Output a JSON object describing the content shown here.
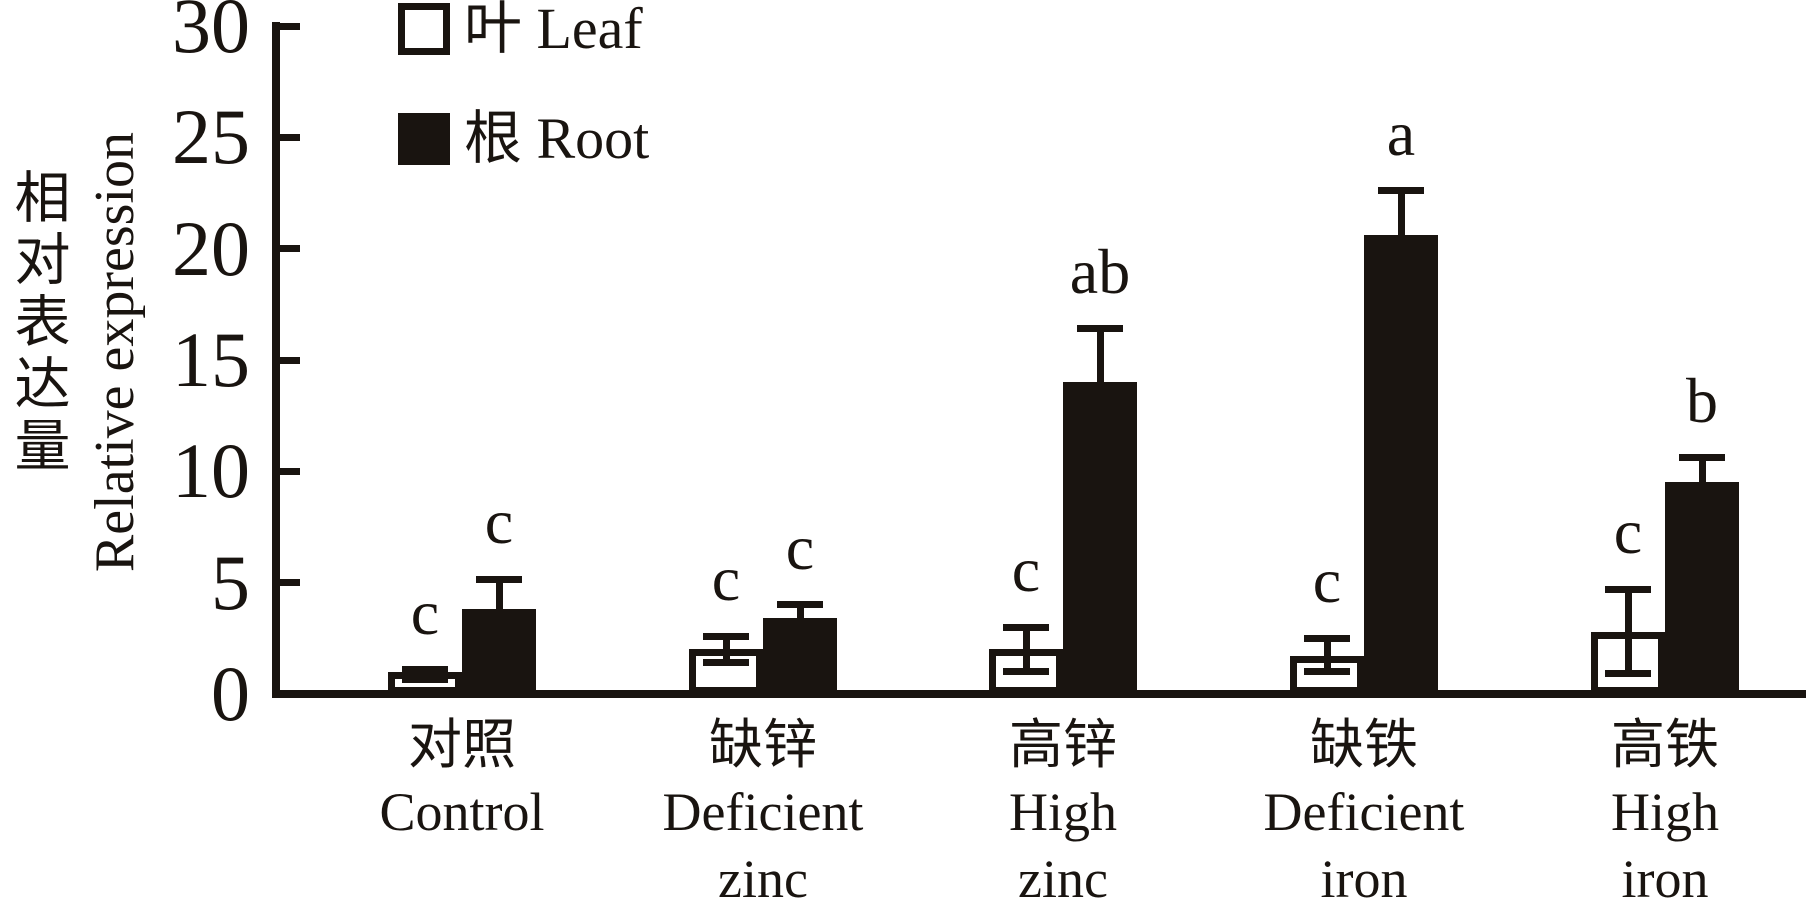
{
  "figure": {
    "background": "#ffffff",
    "ink_color": "#191410"
  },
  "y_axis": {
    "label_zh": "相对表达量",
    "label_en": "Relative expression"
  },
  "legend": {
    "items": [
      {
        "label": "叶 Leaf",
        "swatch": "open"
      },
      {
        "label": "根 Root",
        "swatch": "solid"
      }
    ],
    "position": "top-left-inside"
  },
  "chart_data": {
    "type": "bar",
    "title": "",
    "xlabel": "",
    "ylabel": "相对表达量 Relative expression",
    "ylim": [
      0,
      30
    ],
    "yticks": [
      0,
      5,
      10,
      15,
      20,
      25,
      30
    ],
    "grid": false,
    "legend_position": "top-left-inside",
    "categories": [
      "对照 Control",
      "缺锌 Deficient zinc",
      "高锌 High zinc",
      "缺铁 Deficient iron",
      "高铁 High iron"
    ],
    "category_label_lines": [
      [
        "对照",
        "Control"
      ],
      [
        "缺锌",
        "Deficient",
        "zinc"
      ],
      [
        "高锌",
        "High",
        "zinc"
      ],
      [
        "缺铁",
        "Deficient",
        "iron"
      ],
      [
        "高铁",
        "High",
        "iron"
      ]
    ],
    "series": [
      {
        "name": "叶 Leaf",
        "style": "open",
        "values": [
          1.0,
          2.0,
          2.0,
          1.7,
          2.8
        ],
        "error_up": [
          0.1,
          0.6,
          1.0,
          0.8,
          1.9
        ],
        "error_down": [
          0.35,
          0.6,
          1.0,
          0.7,
          1.9
        ],
        "sig_letters": [
          "c",
          "c",
          "c",
          "c",
          "c"
        ]
      },
      {
        "name": "根 Root",
        "style": "solid",
        "values": [
          3.8,
          3.4,
          14.0,
          20.6,
          9.5
        ],
        "error_up": [
          1.35,
          0.6,
          2.4,
          2.0,
          1.1
        ],
        "error_down": [
          0,
          0,
          0,
          0,
          0
        ],
        "sig_letters": [
          "c",
          "c",
          "ab",
          "a",
          "b"
        ]
      }
    ]
  }
}
